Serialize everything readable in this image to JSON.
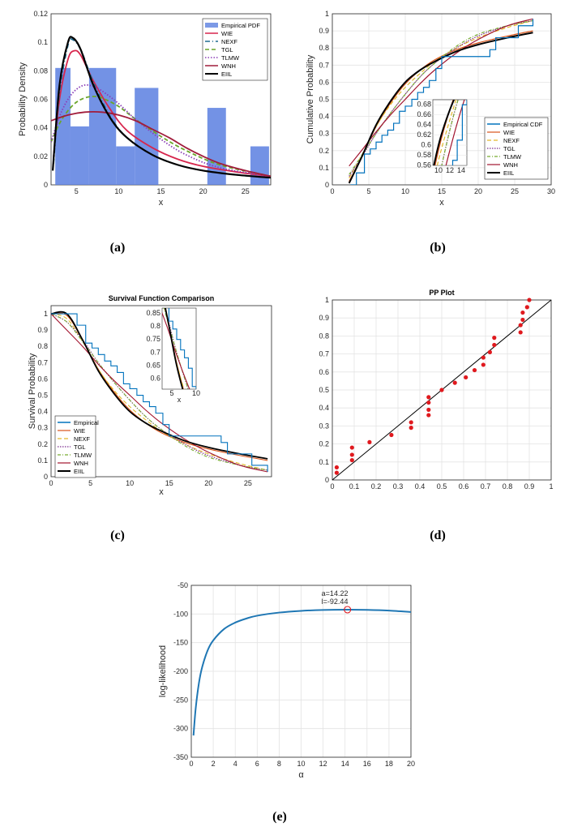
{
  "chart_data": [
    {
      "id": "a",
      "type": "bar",
      "caption": "(a)",
      "title": "",
      "xlabel": "x",
      "ylabel": "Probability Density",
      "xlim": [
        2,
        28
      ],
      "ylim": [
        0,
        0.12
      ],
      "xticks": [
        "5",
        "10",
        "15",
        "20",
        "25"
      ],
      "yticks": [
        "0",
        "0.02",
        "0.04",
        "0.06",
        "0.08",
        "0.1",
        "0.12"
      ],
      "histogram": {
        "name": "Empirical PDF",
        "bins": [
          {
            "x0": 2.5,
            "x1": 4.3,
            "y": 0.082
          },
          {
            "x0": 4.3,
            "x1": 6.5,
            "y": 0.041
          },
          {
            "x0": 6.5,
            "x1": 9.7,
            "y": 0.082
          },
          {
            "x0": 9.7,
            "x1": 11.9,
            "y": 0.027
          },
          {
            "x0": 11.9,
            "x1": 14.7,
            "y": 0.068
          },
          {
            "x0": 20.5,
            "x1": 22.7,
            "y": 0.054
          },
          {
            "x0": 25.6,
            "x1": 27.8,
            "y": 0.027
          }
        ]
      },
      "series": [
        {
          "name": "WIE",
          "x": [
            2.3,
            3,
            4,
            4.7,
            5.5,
            7,
            9,
            11,
            14,
            17,
            20,
            24,
            28
          ],
          "y": [
            0.02,
            0.06,
            0.088,
            0.094,
            0.091,
            0.073,
            0.053,
            0.038,
            0.026,
            0.018,
            0.013,
            0.009,
            0.006
          ]
        },
        {
          "name": "NEXF",
          "x": [
            2.3,
            3,
            4,
            4.5,
            5.5,
            7,
            9,
            11,
            14,
            17,
            20,
            24,
            28
          ],
          "y": [
            0.015,
            0.065,
            0.098,
            0.102,
            0.095,
            0.072,
            0.048,
            0.033,
            0.021,
            0.014,
            0.01,
            0.007,
            0.005
          ]
        },
        {
          "name": "TGL",
          "x": [
            2,
            3,
            4,
            5,
            6,
            7,
            8,
            10,
            12,
            15,
            18,
            22,
            28
          ],
          "y": [
            0.03,
            0.043,
            0.052,
            0.058,
            0.061,
            0.062,
            0.061,
            0.055,
            0.046,
            0.034,
            0.024,
            0.014,
            0.006
          ]
        },
        {
          "name": "TLMW",
          "x": [
            2,
            3,
            4,
            5,
            6,
            7,
            8,
            10,
            12,
            15,
            18,
            22,
            28
          ],
          "y": [
            0.03,
            0.048,
            0.06,
            0.067,
            0.07,
            0.069,
            0.066,
            0.057,
            0.046,
            0.032,
            0.021,
            0.012,
            0.006
          ]
        },
        {
          "name": "WNH",
          "x": [
            2,
            4,
            6,
            8,
            10,
            12,
            14,
            16,
            18,
            20,
            22,
            25,
            28
          ],
          "y": [
            0.045,
            0.049,
            0.051,
            0.051,
            0.049,
            0.045,
            0.039,
            0.033,
            0.026,
            0.02,
            0.015,
            0.01,
            0.006
          ]
        },
        {
          "name": "EIIL",
          "x": [
            2.2,
            3,
            4,
            4.6,
            5.5,
            7,
            9,
            11,
            14,
            17,
            20,
            24,
            28
          ],
          "y": [
            0.01,
            0.07,
            0.1,
            0.103,
            0.095,
            0.07,
            0.047,
            0.033,
            0.021,
            0.014,
            0.01,
            0.007,
            0.005
          ]
        }
      ],
      "legend": "top-right"
    },
    {
      "id": "b",
      "type": "line",
      "caption": "(b)",
      "xlabel": "x",
      "ylabel": "Cumulative Probability",
      "xlim": [
        0,
        30
      ],
      "ylim": [
        0,
        1
      ],
      "xticks": [
        "0",
        "5",
        "10",
        "15",
        "20",
        "25",
        "30"
      ],
      "yticks": [
        "0",
        "0.1",
        "0.2",
        "0.3",
        "0.4",
        "0.5",
        "0.6",
        "0.7",
        "0.8",
        "0.9",
        "1"
      ],
      "empirical": {
        "name": "Empirical CDF",
        "x": [
          2.5,
          3.3,
          4.4,
          5.2,
          6,
          6.8,
          7.6,
          8.4,
          9.2,
          10,
          10.9,
          11.7,
          12.5,
          13.3,
          14.2,
          15,
          21.6,
          22.4,
          25.5,
          27.5
        ],
        "y": [
          0.0,
          0.07,
          0.18,
          0.21,
          0.25,
          0.29,
          0.32,
          0.36,
          0.43,
          0.46,
          0.5,
          0.54,
          0.57,
          0.61,
          0.68,
          0.75,
          0.79,
          0.86,
          0.93,
          0.97
        ]
      },
      "series": [
        {
          "name": "WIE",
          "x": [
            2.3,
            4,
            6,
            8,
            10,
            12,
            14,
            17,
            20,
            24,
            27.5
          ],
          "y": [
            0.02,
            0.16,
            0.34,
            0.48,
            0.59,
            0.67,
            0.73,
            0.79,
            0.83,
            0.87,
            0.9
          ]
        },
        {
          "name": "NEXF",
          "x": [
            2.3,
            4,
            6,
            8,
            10,
            12,
            14,
            17,
            20,
            24,
            27.5
          ],
          "y": [
            0.04,
            0.17,
            0.34,
            0.47,
            0.57,
            0.65,
            0.72,
            0.8,
            0.86,
            0.92,
            0.96
          ]
        },
        {
          "name": "TGL",
          "x": [
            2.3,
            4,
            6,
            8,
            10,
            12,
            14,
            17,
            20,
            24,
            27.5
          ],
          "y": [
            0.05,
            0.16,
            0.3,
            0.42,
            0.53,
            0.63,
            0.71,
            0.8,
            0.87,
            0.93,
            0.96
          ]
        },
        {
          "name": "TLMW",
          "x": [
            2.3,
            4,
            6,
            8,
            10,
            12,
            14,
            17,
            20,
            24,
            27.5
          ],
          "y": [
            0.06,
            0.17,
            0.3,
            0.42,
            0.53,
            0.63,
            0.71,
            0.81,
            0.88,
            0.93,
            0.96
          ]
        },
        {
          "name": "WNH",
          "x": [
            2.3,
            4,
            6,
            8,
            10,
            12,
            14,
            17,
            20,
            24,
            27.5
          ],
          "y": [
            0.11,
            0.2,
            0.31,
            0.41,
            0.5,
            0.59,
            0.67,
            0.77,
            0.85,
            0.93,
            0.97
          ]
        },
        {
          "name": "EIIL",
          "x": [
            2.3,
            4,
            6,
            8,
            10,
            12,
            14,
            17,
            20,
            24,
            27.5
          ],
          "y": [
            0.01,
            0.16,
            0.35,
            0.49,
            0.6,
            0.67,
            0.72,
            0.78,
            0.82,
            0.86,
            0.89
          ]
        }
      ],
      "inset": {
        "xlim": [
          9,
          15
        ],
        "ylim": [
          0.56,
          0.69
        ],
        "xticks": [
          "10",
          "12",
          "14"
        ],
        "yticks": [
          "0.56",
          "0.58",
          "0.6",
          "0.62",
          "0.64",
          "0.66",
          "0.68"
        ]
      },
      "legend": "bottom-right"
    },
    {
      "id": "c",
      "type": "line",
      "caption": "(c)",
      "title": "Survival Function Comparison",
      "xlabel": "x",
      "ylabel": "Survival Probability",
      "xlim": [
        0,
        28
      ],
      "ylim": [
        0,
        1.05
      ],
      "xticks": [
        "0",
        "5",
        "10",
        "15",
        "20",
        "25"
      ],
      "yticks": [
        "0",
        "0.1",
        "0.2",
        "0.3",
        "0.4",
        "0.5",
        "0.6",
        "0.7",
        "0.8",
        "0.9",
        "1"
      ],
      "empirical": {
        "name": "Empirical",
        "x": [
          0,
          3.3,
          4.4,
          5.2,
          6,
          6.8,
          7.6,
          8.4,
          9.2,
          10,
          10.9,
          11.7,
          12.5,
          13.3,
          14.2,
          15,
          21.6,
          22.4,
          25.5,
          27.5
        ],
        "y": [
          1,
          0.93,
          0.82,
          0.79,
          0.75,
          0.71,
          0.68,
          0.64,
          0.57,
          0.54,
          0.5,
          0.46,
          0.43,
          0.39,
          0.32,
          0.25,
          0.21,
          0.14,
          0.07,
          0.03
        ]
      },
      "series": [
        {
          "name": "WIE",
          "x": [
            0,
            2,
            4,
            6,
            8,
            10,
            12,
            14,
            17,
            20,
            24,
            27.5
          ],
          "y": [
            1,
            0.99,
            0.84,
            0.66,
            0.52,
            0.41,
            0.33,
            0.27,
            0.21,
            0.17,
            0.13,
            0.1
          ]
        },
        {
          "name": "NEXF",
          "x": [
            0,
            2,
            4,
            6,
            8,
            10,
            12,
            14,
            17,
            20,
            24,
            27.5
          ],
          "y": [
            1,
            0.97,
            0.83,
            0.66,
            0.53,
            0.43,
            0.35,
            0.28,
            0.2,
            0.14,
            0.08,
            0.04
          ]
        },
        {
          "name": "TGL",
          "x": [
            0,
            2,
            4,
            6,
            8,
            10,
            12,
            14,
            17,
            20,
            24,
            27.5
          ],
          "y": [
            1,
            0.95,
            0.84,
            0.7,
            0.58,
            0.47,
            0.37,
            0.29,
            0.2,
            0.13,
            0.07,
            0.04
          ]
        },
        {
          "name": "TLMW",
          "x": [
            0,
            2,
            4,
            6,
            8,
            10,
            12,
            14,
            17,
            20,
            24,
            27.5
          ],
          "y": [
            1,
            0.95,
            0.83,
            0.7,
            0.58,
            0.47,
            0.37,
            0.29,
            0.19,
            0.12,
            0.07,
            0.04
          ]
        },
        {
          "name": "WNH",
          "x": [
            0,
            2,
            4,
            6,
            8,
            10,
            12,
            14,
            17,
            20,
            24,
            27.5
          ],
          "y": [
            1,
            0.9,
            0.8,
            0.69,
            0.59,
            0.5,
            0.41,
            0.33,
            0.23,
            0.15,
            0.07,
            0.03
          ]
        },
        {
          "name": "EIIL",
          "x": [
            0,
            2,
            4,
            6,
            8,
            10,
            12,
            14,
            17,
            20,
            24,
            27.5
          ],
          "y": [
            1,
            1,
            0.84,
            0.65,
            0.51,
            0.4,
            0.33,
            0.28,
            0.22,
            0.18,
            0.14,
            0.11
          ]
        }
      ],
      "inset": {
        "xlim": [
          3,
          10
        ],
        "ylim": [
          0.56,
          0.87
        ],
        "xticks": [
          "5",
          "10"
        ],
        "yticks": [
          "0.6",
          "0.65",
          "0.7",
          "0.75",
          "0.8",
          "0.85"
        ],
        "xlabel": "x"
      },
      "legend": "bottom-left"
    },
    {
      "id": "d",
      "type": "scatter",
      "caption": "(d)",
      "title": "PP Plot",
      "xlabel": "",
      "ylabel": "",
      "xlim": [
        0,
        1
      ],
      "ylim": [
        0,
        1
      ],
      "xticks": [
        "0",
        "0.1",
        "0.2",
        "0.3",
        "0.4",
        "0.5",
        "0.6",
        "0.7",
        "0.8",
        "0.9",
        "1"
      ],
      "yticks": [
        "0",
        "0.1",
        "0.2",
        "0.3",
        "0.4",
        "0.5",
        "0.6",
        "0.7",
        "0.8",
        "0.9",
        "1"
      ],
      "points": {
        "x": [
          0.02,
          0.02,
          0.09,
          0.09,
          0.09,
          0.17,
          0.27,
          0.36,
          0.36,
          0.44,
          0.44,
          0.44,
          0.44,
          0.5,
          0.56,
          0.61,
          0.65,
          0.69,
          0.69,
          0.72,
          0.74,
          0.74,
          0.86,
          0.86,
          0.87,
          0.87,
          0.89,
          0.9
        ],
        "y": [
          0.04,
          0.07,
          0.11,
          0.14,
          0.18,
          0.21,
          0.25,
          0.29,
          0.32,
          0.36,
          0.39,
          0.43,
          0.46,
          0.5,
          0.54,
          0.57,
          0.61,
          0.64,
          0.68,
          0.71,
          0.75,
          0.79,
          0.82,
          0.86,
          0.89,
          0.93,
          0.96,
          1.0
        ]
      },
      "reference_line": {
        "x": [
          0,
          1
        ],
        "y": [
          0,
          1
        ]
      }
    },
    {
      "id": "e",
      "type": "line",
      "caption": "(e)",
      "xlabel": "α",
      "ylabel": "log-likelihood",
      "xlim": [
        0,
        20
      ],
      "ylim": [
        -350,
        -50
      ],
      "xticks": [
        "0",
        "2",
        "4",
        "6",
        "8",
        "10",
        "12",
        "14",
        "16",
        "18",
        "20"
      ],
      "yticks": [
        "-350",
        "-300",
        "-250",
        "-200",
        "-150",
        "-100",
        "-50"
      ],
      "series": [
        {
          "name": "log-likelihood",
          "x": [
            0.2,
            0.4,
            0.7,
            1,
            1.5,
            2,
            3,
            4,
            5,
            6,
            8,
            10,
            12,
            14.22,
            16,
            18,
            20
          ],
          "y": [
            -312,
            -265,
            -220,
            -192,
            -163,
            -146,
            -126,
            -115,
            -108,
            -103,
            -97.5,
            -94.5,
            -93,
            -92.44,
            -92.8,
            -94,
            -96.5
          ]
        }
      ],
      "marker": {
        "x": 14.22,
        "y": -92.44
      },
      "annotation": [
        "a=14.22",
        "l=-92.44"
      ]
    }
  ],
  "styles": {
    "WIE": {
      "color": "#d7264d",
      "dash": ""
    },
    "NEXF": {
      "color": "#1e6b8f",
      "dash": "6,3,1,3"
    },
    "TGL": {
      "color": "#6aa62a",
      "dash": "5,3"
    },
    "TLMW": {
      "color": "#8b3fb8",
      "dash": "1.5,2"
    },
    "WNH": {
      "color": "#a11c3b",
      "dash": ""
    },
    "EIIL": {
      "color": "#000000",
      "dash": ""
    },
    "b_WIE": {
      "color": "#d9541a",
      "dash": ""
    },
    "b_NEXF": {
      "color": "#e3b82b",
      "dash": "5,3"
    },
    "b_TGL": {
      "color": "#7e2f8e",
      "dash": "1.5,1.5"
    },
    "b_TLMW": {
      "color": "#77ac30",
      "dash": "4,2,1,2"
    },
    "b_WNH": {
      "color": "#a2142f",
      "dash": ""
    },
    "b_EIIL": {
      "color": "#000000",
      "dash": ""
    },
    "empirical": {
      "color": "#0072bd",
      "dash": ""
    },
    "hist": "#5b7fe0",
    "scatter": "#e0191e",
    "curve_e": "#1f77b4"
  }
}
